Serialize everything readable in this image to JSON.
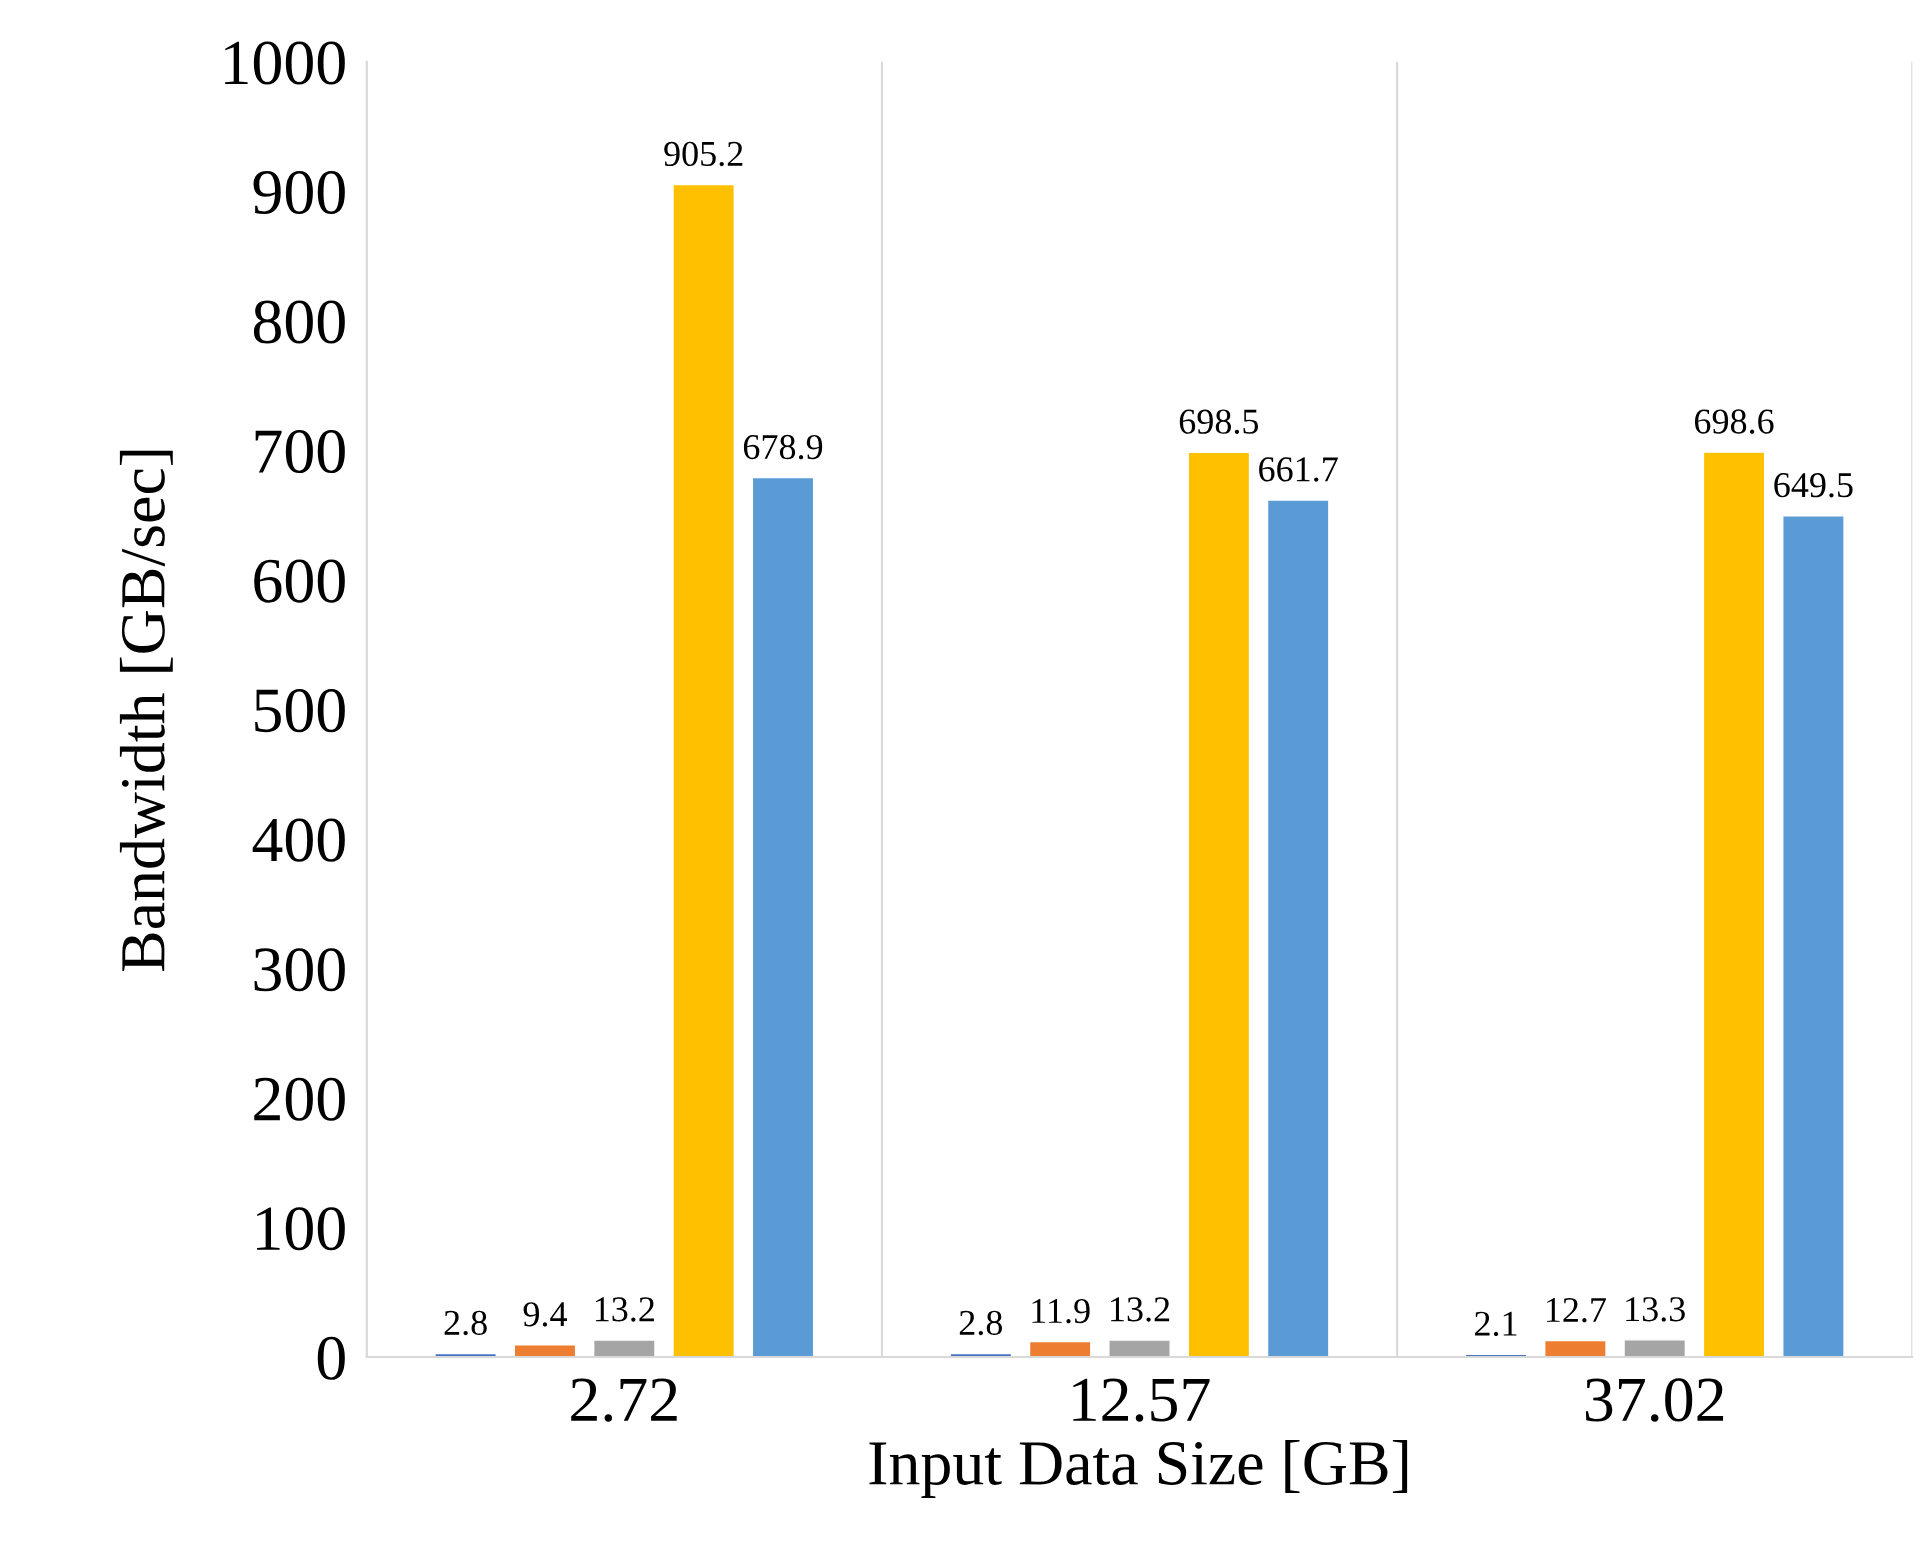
{
  "chart_data": {
    "type": "bar",
    "xlabel": "Input Data Size [GB]",
    "ylabel": "Bandwidth [GB/sec]",
    "categories": [
      "2.72",
      "12.57",
      "37.02"
    ],
    "series": [
      {
        "color": "#4472c4",
        "values": [
          2.8,
          2.8,
          2.1
        ]
      },
      {
        "color": "#ed7d31",
        "values": [
          9.4,
          11.9,
          12.7
        ]
      },
      {
        "color": "#a5a5a5",
        "values": [
          13.2,
          13.2,
          13.3
        ]
      },
      {
        "color": "#ffc000",
        "values": [
          905.2,
          698.5,
          698.6
        ]
      },
      {
        "color": "#5b9bd5",
        "values": [
          678.9,
          661.7,
          649.5
        ]
      }
    ],
    "ylim": [
      0,
      1000
    ],
    "yticks": [
      0,
      100,
      200,
      300,
      400,
      500,
      600,
      700,
      800,
      900,
      1000
    ],
    "grid": "x",
    "data_labels": true
  }
}
